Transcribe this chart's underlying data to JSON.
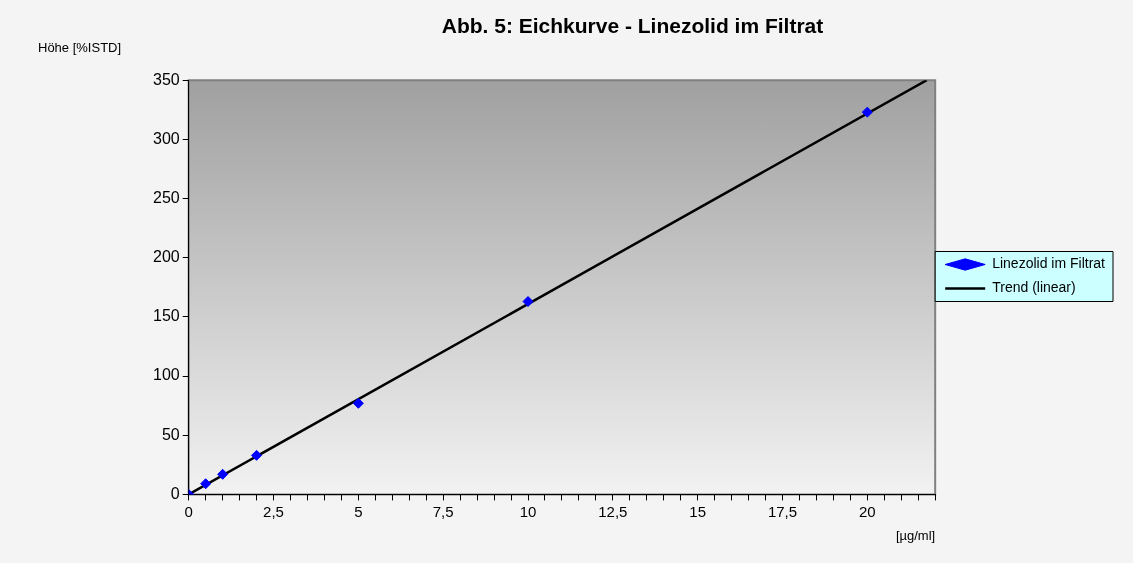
{
  "chart_data": {
    "type": "scatter",
    "title": "Abb. 5: Eichkurve - Linezolid im Filtrat",
    "xlabel": "[µg/ml]",
    "ylabel": "Höhe [%ISTD]",
    "xlim": [
      0,
      22
    ],
    "ylim": [
      0,
      350
    ],
    "xticks": [
      0,
      {
        "value": 0.5,
        "label": null
      },
      {
        "value": 1,
        "label": null
      },
      {
        "value": 1.5,
        "label": null
      },
      {
        "value": 2,
        "label": null
      },
      {
        "value": 2.5,
        "label": "2,5"
      },
      {
        "value": 3,
        "label": null
      },
      {
        "value": 3.5,
        "label": null
      },
      {
        "value": 4,
        "label": null
      },
      {
        "value": 4.5,
        "label": null
      },
      5,
      {
        "value": 5.5,
        "label": null
      },
      {
        "value": 6,
        "label": null
      },
      {
        "value": 6.5,
        "label": null
      },
      {
        "value": 7,
        "label": null
      },
      {
        "value": 7.5,
        "label": "7,5"
      },
      {
        "value": 8,
        "label": null
      },
      {
        "value": 8.5,
        "label": null
      },
      {
        "value": 9,
        "label": null
      },
      {
        "value": 9.5,
        "label": null
      },
      10,
      {
        "value": 10.5,
        "label": null
      },
      {
        "value": 11,
        "label": null
      },
      {
        "value": 11.5,
        "label": null
      },
      {
        "value": 12,
        "label": null
      },
      {
        "value": 12.5,
        "label": "12,5"
      },
      {
        "value": 13,
        "label": null
      },
      {
        "value": 13.5,
        "label": null
      },
      {
        "value": 14,
        "label": null
      },
      {
        "value": 14.5,
        "label": null
      },
      15,
      {
        "value": 15.5,
        "label": null
      },
      {
        "value": 16,
        "label": null
      },
      {
        "value": 16.5,
        "label": null
      },
      {
        "value": 17,
        "label": null
      },
      {
        "value": 17.5,
        "label": "17,5"
      },
      {
        "value": 18,
        "label": null
      },
      {
        "value": 18.5,
        "label": null
      },
      {
        "value": 19,
        "label": null
      },
      {
        "value": 19.5,
        "label": null
      },
      20,
      {
        "value": 20.5,
        "label": null
      },
      {
        "value": 21,
        "label": null
      },
      {
        "value": 21.5,
        "label": null
      },
      {
        "value": 22,
        "label": null
      }
    ],
    "yticks": [
      0,
      50,
      100,
      150,
      200,
      250,
      300,
      350
    ],
    "grid": false,
    "legend": "right",
    "marker": "diamond",
    "series": [
      {
        "name": "Linezolid im Filtrat",
        "color": "#0000ff",
        "x": [
          0,
          0.5,
          1,
          2,
          5,
          10,
          20
        ],
        "values": [
          0,
          9,
          17,
          33,
          77,
          163,
          323
        ]
      },
      {
        "name": "Trend (linear)",
        "type": "line",
        "color": "#000000",
        "marker": "none",
        "line_style": "solid",
        "x": [
          0,
          21.75
        ],
        "values": [
          0,
          350
        ]
      }
    ]
  }
}
